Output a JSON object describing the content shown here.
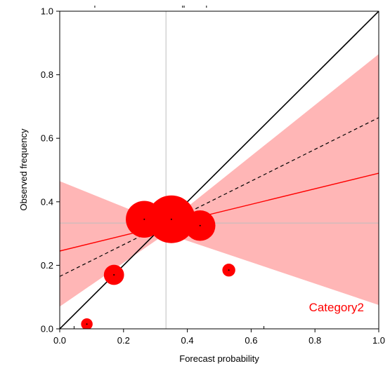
{
  "chart_data": {
    "type": "scatter",
    "title": "",
    "xlabel": "Forecast probability",
    "ylabel": "Observed frequency",
    "xlim": [
      0,
      1
    ],
    "ylim": [
      0,
      1
    ],
    "x_ticks": [
      "0.0",
      "0.2",
      "0.4",
      "0.6",
      "0.8",
      "1.0"
    ],
    "y_ticks": [
      "0.0",
      "0.2",
      "0.4",
      "0.6",
      "0.8",
      "1.0"
    ],
    "grid": false,
    "category_label": "Category2",
    "climatology": {
      "x": 0.333,
      "y": 0.333
    },
    "perfect_reliability": [
      [
        0,
        0
      ],
      [
        1,
        1
      ]
    ],
    "reliability_points": [
      {
        "x": 0.085,
        "y": 0.015,
        "weight": 0.02
      },
      {
        "x": 0.17,
        "y": 0.17,
        "weight": 0.12
      },
      {
        "x": 0.265,
        "y": 0.345,
        "weight": 0.55
      },
      {
        "x": 0.35,
        "y": 0.345,
        "weight": 1.0
      },
      {
        "x": 0.44,
        "y": 0.325,
        "weight": 0.35
      },
      {
        "x": 0.53,
        "y": 0.185,
        "weight": 0.03
      }
    ],
    "fit_line": {
      "x": [
        0,
        1
      ],
      "y": [
        0.245,
        0.49
      ]
    },
    "dashed_line": {
      "x": [
        0,
        1
      ],
      "y": [
        0.165,
        0.665
      ]
    },
    "confidence_band": {
      "x": [
        0,
        0.333,
        1
      ],
      "lower": [
        0.07,
        0.3,
        0.075
      ],
      "upper": [
        0.465,
        0.33,
        0.865
      ]
    },
    "colors": {
      "accent": "#ff0000",
      "band": "#ffb6b6",
      "ref_line": "#bdbdbd",
      "diagonal": "#000000"
    },
    "rug_top_x": [
      0.11,
      0.385,
      0.39,
      0.46
    ],
    "rug_bottom_x": [
      0.045,
      0.64
    ]
  }
}
